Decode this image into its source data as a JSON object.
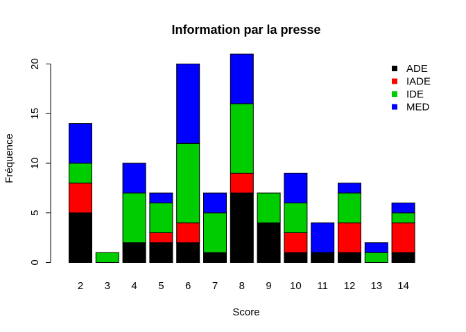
{
  "chart_data": {
    "type": "bar",
    "stacked": true,
    "title": "Information par la presse",
    "xlabel": "Score",
    "ylabel": "Fréquence",
    "categories": [
      "2",
      "3",
      "4",
      "5",
      "6",
      "7",
      "8",
      "9",
      "10",
      "11",
      "12",
      "13",
      "14"
    ],
    "series": [
      {
        "name": "ADE",
        "color": "#000000",
        "values": [
          5,
          0,
          2,
          2,
          2,
          1,
          7,
          4,
          1,
          1,
          1,
          0,
          1
        ]
      },
      {
        "name": "IADE",
        "color": "#ff0000",
        "values": [
          3,
          0,
          0,
          1,
          2,
          0,
          2,
          0,
          2,
          0,
          3,
          0,
          3
        ]
      },
      {
        "name": "IDE",
        "color": "#00cd00",
        "values": [
          2,
          1,
          5,
          3,
          8,
          4,
          7,
          3,
          3,
          0,
          3,
          1,
          1
        ]
      },
      {
        "name": "MED",
        "color": "#0000ff",
        "values": [
          4,
          0,
          3,
          1,
          8,
          2,
          5,
          0,
          3,
          3,
          1,
          1,
          1
        ]
      }
    ],
    "ylim": [
      0,
      21
    ],
    "yticks": [
      0,
      5,
      10,
      15,
      20
    ],
    "grid": false,
    "legend_position": "top-right"
  }
}
